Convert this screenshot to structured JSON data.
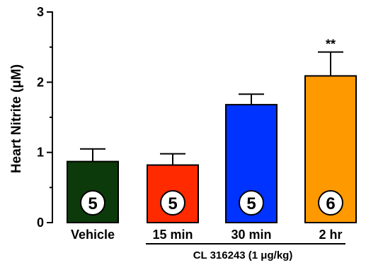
{
  "chart_data": {
    "type": "bar",
    "categories": [
      "Vehicle",
      "15 min",
      "30 min",
      "2 hr"
    ],
    "values": [
      0.87,
      0.82,
      1.68,
      2.09
    ],
    "errors": [
      0.18,
      0.16,
      0.15,
      0.34
    ],
    "n_labels": [
      "5",
      "5",
      "5",
      "6"
    ],
    "significance": [
      "",
      "",
      "",
      "**"
    ],
    "colors": [
      "#0d3a0a",
      "#ff2a00",
      "#0033ff",
      "#ff9900"
    ],
    "ylabel": "Heart Nitrite (μM)",
    "yticks": [
      "0",
      "1",
      "2",
      "3"
    ],
    "ylim": [
      0,
      3
    ],
    "group_label": "CL 316243 (1 μg/kg)",
    "grid": false,
    "legend": "none"
  }
}
